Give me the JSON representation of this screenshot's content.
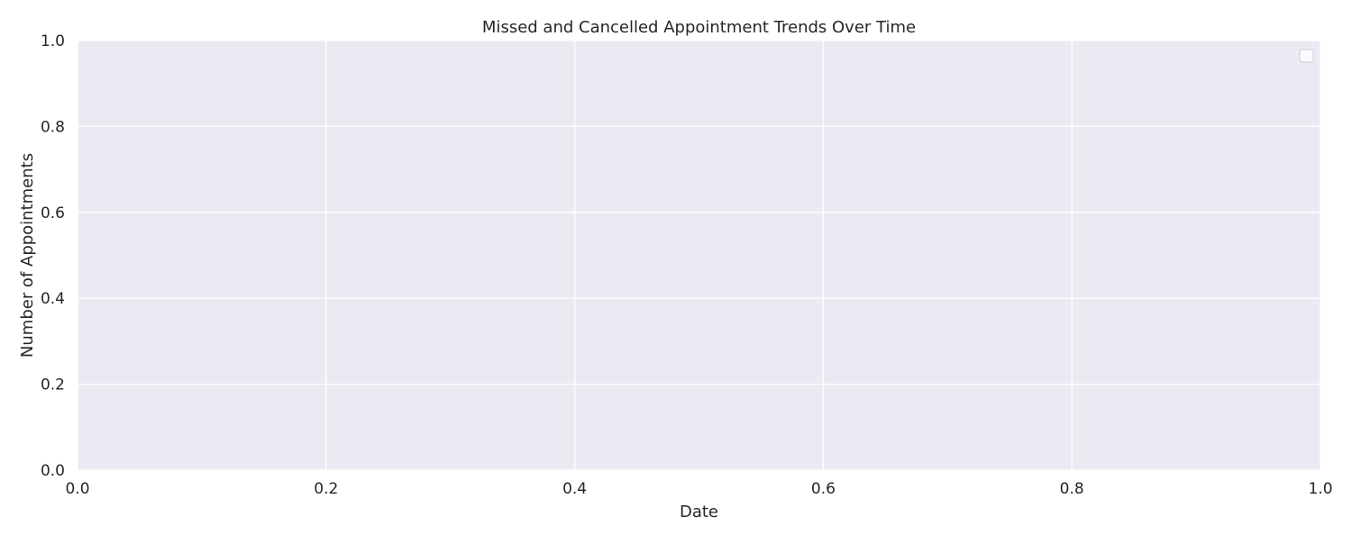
{
  "chart_data": {
    "type": "line",
    "title": "Missed and Cancelled Appointment Trends Over Time",
    "xlabel": "Date",
    "ylabel": "Number of Appointments",
    "xlim": [
      0.0,
      1.0
    ],
    "ylim": [
      0.0,
      1.0
    ],
    "x_ticks": [
      "0.0",
      "0.2",
      "0.4",
      "0.6",
      "0.8",
      "1.0"
    ],
    "y_ticks": [
      "0.0",
      "0.2",
      "0.4",
      "0.6",
      "0.8",
      "1.0"
    ],
    "series": [],
    "grid": true,
    "legend": {
      "position": "top-right",
      "entries": []
    },
    "colors": {
      "plot_background": "#EAEAF2",
      "grid": "#FFFFFF",
      "text": "#262626",
      "legend_border": "#CCCCCC",
      "figure_background": "#FFFFFF"
    }
  }
}
